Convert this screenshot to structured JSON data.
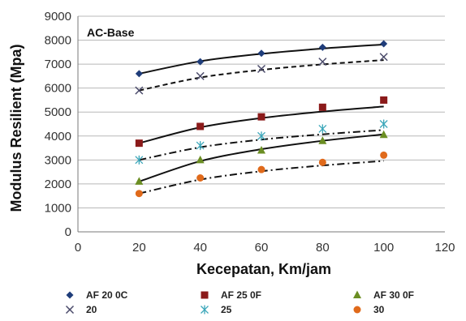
{
  "chart_data": {
    "type": "scatter",
    "panel_label": "AC-Base",
    "xlabel": "Kecepatan, Km/jam",
    "ylabel": "Modulus Resilient (Mpa)",
    "xlim": [
      0,
      120
    ],
    "ylim": [
      0,
      9000
    ],
    "xticks": [
      0,
      20,
      40,
      60,
      80,
      100,
      120
    ],
    "yticks": [
      0,
      1000,
      2000,
      3000,
      4000,
      5000,
      6000,
      7000,
      8000,
      9000
    ],
    "x_tick_labels": [
      "0",
      "20",
      "40",
      "60",
      "80",
      "100",
      "120"
    ],
    "y_tick_labels": [
      "0",
      "1000",
      "2000",
      "3000",
      "4000",
      "5000",
      "6000",
      "7000",
      "8000",
      "9000"
    ],
    "grid": "horizontal",
    "legend_position": "bottom",
    "x": [
      20,
      40,
      60,
      80,
      100
    ],
    "series": [
      {
        "name": "AF 20 0C",
        "marker": "diamond",
        "color": "#1f3d7a",
        "values": [
          6600,
          7100,
          7450,
          7700,
          7850
        ],
        "trend": [
          6600,
          7120,
          7430,
          7650,
          7820
        ],
        "trend_style": "solid"
      },
      {
        "name": "20",
        "marker": "x",
        "color": "#4a4a6a",
        "values": [
          5900,
          6500,
          6800,
          7100,
          7300
        ],
        "trend": [
          5900,
          6440,
          6760,
          6990,
          7170
        ],
        "trend_style": "dashed"
      },
      {
        "name": "AF 25 0F",
        "marker": "square",
        "color": "#8b1a1a",
        "values": [
          3700,
          4400,
          4800,
          5200,
          5500
        ],
        "trend": [
          3700,
          4360,
          4750,
          5020,
          5230
        ],
        "trend_style": "solid"
      },
      {
        "name": "25",
        "marker": "star",
        "color": "#3aa6b9",
        "values": [
          3000,
          3600,
          4000,
          4300,
          4500
        ],
        "trend": [
          3000,
          3530,
          3850,
          4070,
          4250
        ],
        "trend_style": "dashdot"
      },
      {
        "name": "AF 30 0F",
        "marker": "triangle",
        "color": "#6b8e23",
        "values": [
          2100,
          3000,
          3400,
          3800,
          4050
        ],
        "trend": [
          2100,
          2950,
          3450,
          3800,
          4070
        ],
        "trend_style": "solid"
      },
      {
        "name": "30",
        "marker": "circle",
        "color": "#e06a1b",
        "values": [
          1600,
          2250,
          2600,
          2900,
          3200
        ],
        "trend": [
          1600,
          2180,
          2530,
          2770,
          2960
        ],
        "trend_style": "dashdot"
      }
    ]
  }
}
